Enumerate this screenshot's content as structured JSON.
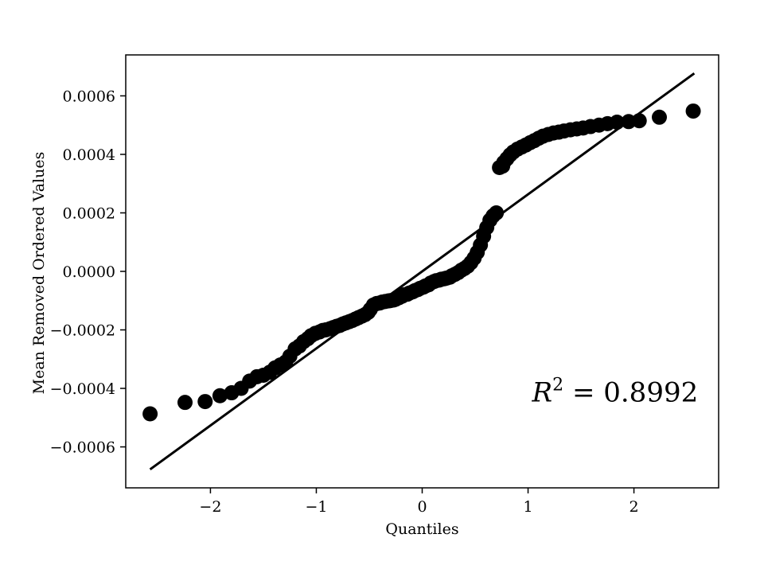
{
  "chart_data": {
    "type": "scatter",
    "title": "",
    "xlabel": "Quantiles",
    "ylabel": "Mean Removed Ordered Values",
    "xlim": [
      -2.8,
      2.8
    ],
    "ylim": [
      -0.00074,
      0.00074
    ],
    "x_ticks": [
      -2,
      -1,
      0,
      1,
      2
    ],
    "x_tick_labels": [
      "−2",
      "−1",
      "0",
      "1",
      "2"
    ],
    "y_ticks": [
      -0.0006,
      -0.0004,
      -0.0002,
      0.0,
      0.0002,
      0.0004,
      0.0006
    ],
    "y_tick_labels": [
      "−0.0006",
      "−0.0004",
      "−0.0002",
      "0.0000",
      "0.0002",
      "0.0004",
      "0.0006"
    ],
    "grid": false,
    "colors": {
      "points": "#000000",
      "fit_line": "#000000",
      "axes": "#000000"
    },
    "series": [
      {
        "kind": "points",
        "x": [
          -2.57,
          -2.24,
          -2.05,
          -1.91,
          -1.8,
          -1.71,
          -1.63,
          -1.56,
          -1.5,
          -1.44,
          -1.39,
          -1.34,
          -1.29,
          -1.25,
          -1.2,
          -1.16,
          -1.12,
          -1.08,
          -1.05,
          -1.01,
          -0.97,
          -0.94,
          -0.91,
          -0.87,
          -0.84,
          -0.81,
          -0.78,
          -0.75,
          -0.72,
          -0.69,
          -0.66,
          -0.63,
          -0.6,
          -0.57,
          -0.54,
          -0.51,
          -0.49,
          -0.46,
          -0.43,
          -0.4,
          -0.38,
          -0.35,
          -0.32,
          -0.3,
          -0.27,
          -0.25,
          -0.22,
          -0.19,
          -0.17,
          -0.14,
          -0.12,
          -0.09,
          -0.07,
          -0.04,
          -0.02,
          0.01,
          0.03,
          0.06,
          0.08,
          0.11,
          0.13,
          0.16,
          0.18,
          0.21,
          0.23,
          0.26,
          0.28,
          0.31,
          0.34,
          0.37,
          0.4,
          0.43,
          0.46,
          0.49,
          0.52,
          0.55,
          0.58,
          0.61,
          0.64,
          0.67,
          0.7,
          0.73,
          0.76,
          0.77,
          0.8,
          0.83,
          0.86,
          0.9,
          0.94,
          0.98,
          1.02,
          1.06,
          1.1,
          1.14,
          1.19,
          1.24,
          1.29,
          1.34,
          1.4,
          1.46,
          1.52,
          1.59,
          1.67,
          1.75,
          1.84,
          1.95,
          2.05,
          2.24,
          2.56
        ],
        "y": [
          -0.000487,
          -0.000448,
          -0.000445,
          -0.000425,
          -0.000415,
          -0.0004,
          -0.000375,
          -0.00036,
          -0.000355,
          -0.000345,
          -0.00033,
          -0.00032,
          -0.00031,
          -0.00029,
          -0.000265,
          -0.000255,
          -0.00024,
          -0.00023,
          -0.00022,
          -0.000212,
          -0.000207,
          -0.000202,
          -0.0002,
          -0.000196,
          -0.000192,
          -0.000188,
          -0.000185,
          -0.00018,
          -0.000176,
          -0.000172,
          -0.000168,
          -0.000163,
          -0.000158,
          -0.000153,
          -0.000148,
          -0.00014,
          -0.00013,
          -0.000115,
          -0.00011,
          -0.000108,
          -0.000105,
          -0.000103,
          -0.000101,
          -0.0001,
          -9.8e-05,
          -9.5e-05,
          -9e-05,
          -8.5e-05,
          -8e-05,
          -7.8e-05,
          -7.4e-05,
          -7e-05,
          -6.6e-05,
          -6.2e-05,
          -5.8e-05,
          -5.4e-05,
          -5e-05,
          -4.6e-05,
          -4e-05,
          -3.5e-05,
          -3.2e-05,
          -3e-05,
          -2.7e-05,
          -2.5e-05,
          -2.3e-05,
          -2e-05,
          -1.5e-05,
          -1e-05,
          -4e-06,
          4e-06,
          1e-05,
          1.8e-05,
          3e-05,
          4.5e-05,
          6.5e-05,
          9e-05,
          0.00012,
          0.00015,
          0.000175,
          0.00019,
          0.0002,
          0.000355,
          0.00036,
          0.000372,
          0.000385,
          0.000398,
          0.000408,
          0.000418,
          0.000425,
          0.000432,
          0.00044,
          0.000447,
          0.000455,
          0.000462,
          0.000468,
          0.000473,
          0.000476,
          0.00048,
          0.000484,
          0.000487,
          0.00049,
          0.000495,
          0.0005,
          0.000505,
          0.00051,
          0.000512,
          0.000515,
          0.000527,
          0.000548
        ]
      },
      {
        "kind": "fit_line",
        "x": [
          -2.57,
          2.57
        ],
        "y": [
          -0.000677,
          0.000677
        ]
      }
    ],
    "annotations": [
      {
        "base": "R",
        "sup": "2",
        "rest": " = 0.8992",
        "x": 1.0,
        "y": -0.00044
      }
    ]
  }
}
